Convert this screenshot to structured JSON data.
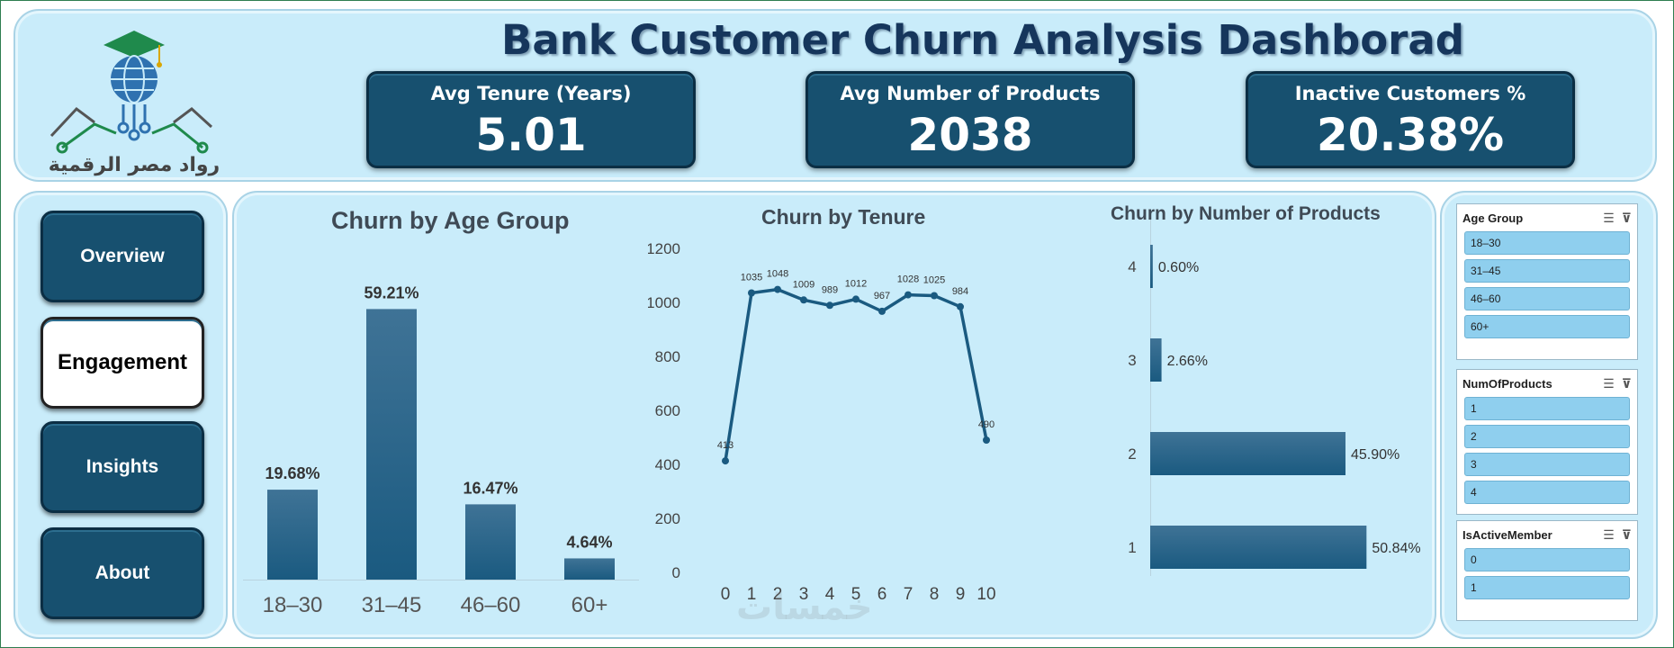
{
  "header": {
    "title": "Bank Customer Churn Analysis Dashborad",
    "logo_text": "رواد مصر الرقمية"
  },
  "kpis": [
    {
      "label": "Avg Tenure (Years)",
      "value": "5.01"
    },
    {
      "label": "Avg Number of Products",
      "value": "2038"
    },
    {
      "label": "Inactive Customers %",
      "value": "20.38%"
    }
  ],
  "nav": {
    "items": [
      {
        "label": "Overview"
      },
      {
        "label": "Engagement",
        "active": true
      },
      {
        "label": "Insights"
      },
      {
        "label": "About"
      }
    ]
  },
  "colors": {
    "bar": "#1a5a80",
    "bar_top": "#3f7396",
    "line": "#1a5a80",
    "accent": "#17506f",
    "panel": "#c9ecfa"
  },
  "chart_data": [
    {
      "type": "bar",
      "title": "Churn by Age Group",
      "categories": [
        "18–30",
        "31–45",
        "46–60",
        "60+"
      ],
      "values": [
        19.68,
        59.21,
        16.47,
        4.64
      ],
      "value_labels": [
        "19.68%",
        "59.21%",
        "16.47%",
        "4.64%"
      ],
      "ylim": [
        0,
        65
      ]
    },
    {
      "type": "line",
      "title": "Churn by Tenure",
      "x": [
        0,
        1,
        2,
        3,
        4,
        5,
        6,
        7,
        8,
        9,
        10
      ],
      "values": [
        413,
        1035,
        1048,
        1009,
        989,
        1012,
        967,
        1028,
        1025,
        984,
        490
      ],
      "yticks": [
        0,
        200,
        400,
        600,
        800,
        1000,
        1200
      ],
      "ylim": [
        0,
        1200
      ]
    },
    {
      "type": "bar",
      "orientation": "horizontal",
      "title": "Churn by Number of Products",
      "categories": [
        "4",
        "3",
        "2",
        "1"
      ],
      "values": [
        0.6,
        2.66,
        45.9,
        50.84
      ],
      "value_labels": [
        "0.60%",
        "2.66%",
        "45.90%",
        "50.84%"
      ],
      "xlim": [
        0,
        55
      ]
    }
  ],
  "slicers": [
    {
      "title": "Age Group",
      "items": [
        "18–30",
        "31–45",
        "46–60",
        "60+"
      ]
    },
    {
      "title": "NumOfProducts",
      "items": [
        "1",
        "2",
        "3",
        "4"
      ]
    },
    {
      "title": "IsActiveMember",
      "items": [
        "0",
        "1"
      ]
    }
  ],
  "watermark": "خمسات"
}
